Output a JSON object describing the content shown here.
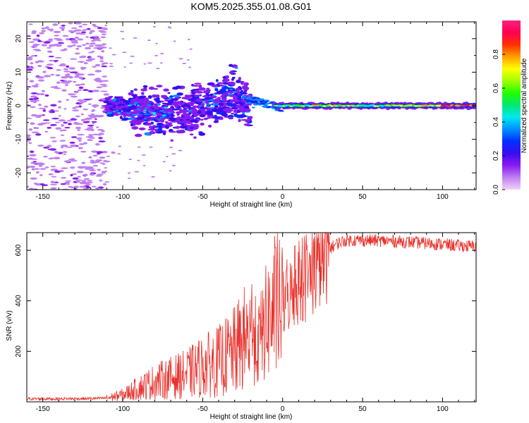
{
  "chart_data": [
    {
      "type": "heatmap",
      "title": "KOM5.2025.355.01.08.G01",
      "xlabel": "Height of straight line (km)",
      "ylabel": "Frequency (Hz)",
      "xlim": [
        -160,
        121
      ],
      "ylim": [
        -25,
        25
      ],
      "xticks": [
        -150,
        -100,
        -50,
        0,
        50,
        100
      ],
      "yticks": [
        -20,
        -10,
        0,
        10,
        20
      ],
      "colorbar": {
        "label": "Normalized spectral amplitude",
        "range": [
          0,
          1
        ],
        "ticks": [
          "0.0",
          "0.2",
          "0.4",
          "0.6",
          "0.8"
        ],
        "colors": [
          "#f2d2f8",
          "#c080f0",
          "#8a1cf0",
          "#3a0cf0",
          "#0030ff",
          "#0090ff",
          "#00e8f0",
          "#00e870",
          "#20ff00",
          "#a0ff00",
          "#ffff00",
          "#ffa000",
          "#ff3000",
          "#ff0050",
          "#ff2080"
        ]
      },
      "regions": [
        {
          "name": "noise-scatter",
          "x_range": [
            -160,
            -110
          ],
          "freq_range": [
            -25,
            25
          ],
          "amplitude": 0.05
        },
        {
          "name": "onset-cluster",
          "x_range": [
            -110,
            -20
          ],
          "freq_range": [
            -12,
            9
          ],
          "amplitude": 0.15
        },
        {
          "name": "main-line",
          "x_range": [
            -5,
            121
          ],
          "freq": 0,
          "amplitude": 0.8
        }
      ]
    },
    {
      "type": "line",
      "xlabel": "Height of straight line (km)",
      "ylabel": "SNR (v/v)",
      "xlim": [
        -160,
        121
      ],
      "ylim": [
        0,
        670
      ],
      "xticks": [
        -150,
        -100,
        -50,
        0,
        50,
        100
      ],
      "yticks": [
        200,
        400,
        600
      ],
      "series": [
        {
          "name": "SNR",
          "color": "#e8302a",
          "x": [
            -160,
            -140,
            -120,
            -110,
            -100,
            -90,
            -80,
            -70,
            -60,
            -50,
            -40,
            -30,
            -25,
            -20,
            -15,
            -10,
            -5,
            0,
            5,
            10,
            15,
            20,
            25,
            30,
            35,
            40,
            50,
            60,
            70,
            80,
            90,
            100,
            110,
            121
          ],
          "values": [
            12,
            12,
            13,
            15,
            28,
            55,
            80,
            95,
            110,
            140,
            160,
            200,
            240,
            260,
            230,
            320,
            360,
            380,
            430,
            460,
            480,
            520,
            570,
            610,
            630,
            640,
            640,
            638,
            636,
            632,
            628,
            624,
            618,
            615
          ]
        }
      ]
    }
  ]
}
